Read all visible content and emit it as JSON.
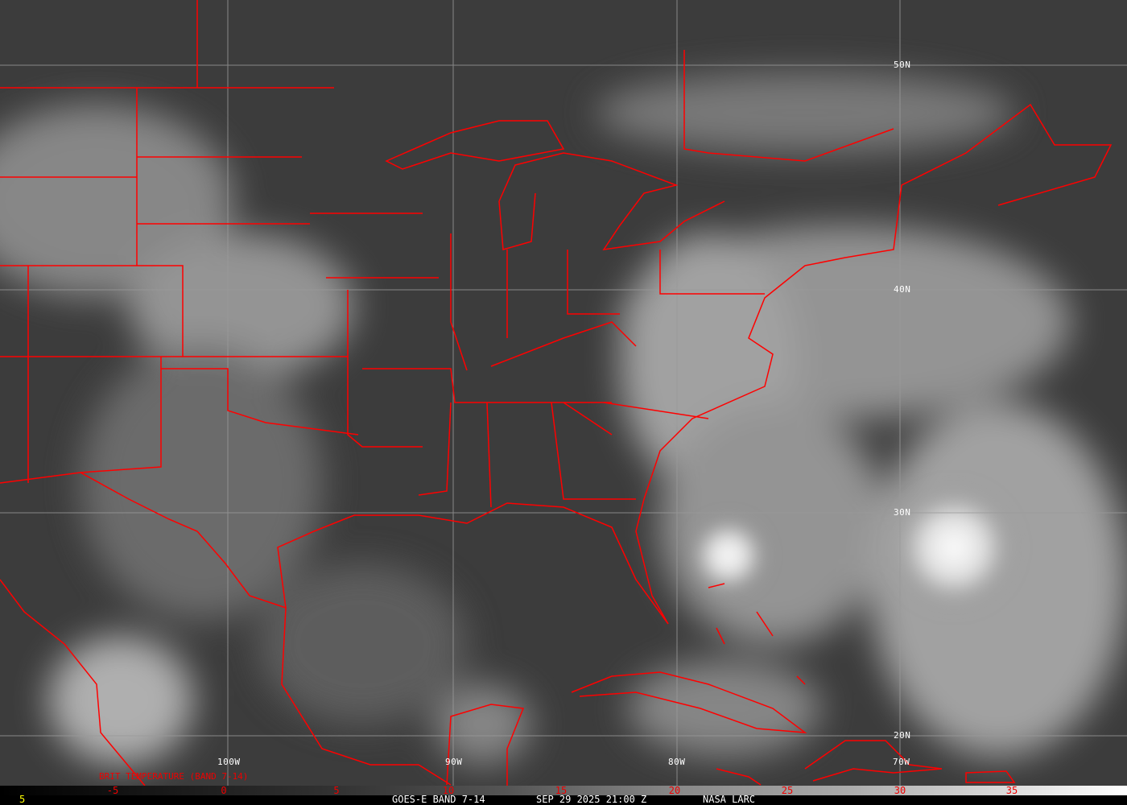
{
  "map": {
    "longitude_labels": [
      "100W",
      "90W",
      "80W",
      "70W"
    ],
    "latitude_labels": [
      "50N",
      "40N",
      "30N",
      "20N"
    ],
    "colors": {
      "background": "#3a3a3a",
      "borders": "#ff0000",
      "grid": "#9a9a9a",
      "footer_text": "#ffffff",
      "frame_number": "#ffff00"
    }
  },
  "colorbar": {
    "title": "BRIT TEMPERATURE (BAND 7-14)",
    "ticks": [
      "-5",
      "0",
      "5",
      "10",
      "15",
      "20",
      "25",
      "30",
      "35"
    ]
  },
  "footer": {
    "frame": "5",
    "product": "GOES-E BAND 7-14",
    "datetime": "SEP 29 2025 21:00 Z",
    "source": "NASA LARC"
  }
}
